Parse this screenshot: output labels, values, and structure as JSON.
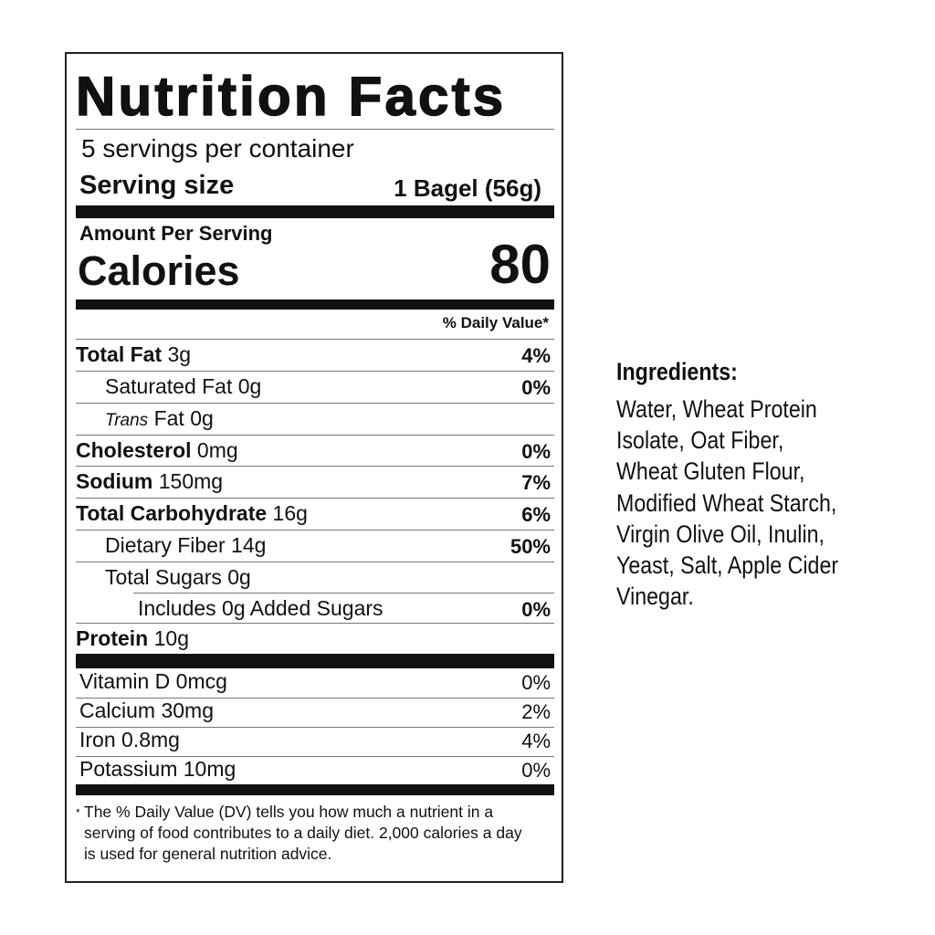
{
  "label": {
    "title": "Nutrition Facts",
    "servings_per_container": "5 servings per container",
    "serving_size_label": "Serving size",
    "serving_size_value": "1 Bagel (56g)",
    "amount_per_serving": "Amount Per Serving",
    "calories_label": "Calories",
    "calories_value": "80",
    "daily_value_header": "% Daily Value*",
    "nutrients": [
      {
        "name": "Total Fat",
        "amount": "3g",
        "dv": "4%",
        "bold": true,
        "indent": 0
      },
      {
        "name": "Saturated Fat",
        "amount": "0g",
        "dv": "0%",
        "bold": false,
        "indent": 1
      },
      {
        "name": "Trans",
        "name_suffix": "Fat",
        "amount": "0g",
        "dv": "",
        "bold": false,
        "indent": 1,
        "italic_prefix": true
      },
      {
        "name": "Cholesterol",
        "amount": "0mg",
        "dv": "0%",
        "bold": true,
        "indent": 0
      },
      {
        "name": "Sodium",
        "amount": "150mg",
        "dv": "7%",
        "bold": true,
        "indent": 0
      },
      {
        "name": "Total Carbohydrate",
        "amount": "16g",
        "dv": "6%",
        "bold": true,
        "indent": 0
      },
      {
        "name": "Dietary Fiber",
        "amount": "14g",
        "dv": "50%",
        "bold": false,
        "indent": 1
      },
      {
        "name": "Total Sugars",
        "amount": "0g",
        "dv": "",
        "bold": false,
        "indent": 1
      },
      {
        "name": "Includes 0g Added Sugars",
        "amount": "",
        "dv": "0%",
        "bold": false,
        "indent": 2
      },
      {
        "name": "Protein",
        "amount": "10g",
        "dv": "",
        "bold": true,
        "indent": 0
      }
    ],
    "vitamins": [
      {
        "name": "Vitamin D 0mcg",
        "dv": "0%"
      },
      {
        "name": "Calcium 30mg",
        "dv": "2%"
      },
      {
        "name": "Iron 0.8mg",
        "dv": "4%"
      },
      {
        "name": "Potassium 10mg",
        "dv": "0%"
      }
    ],
    "footnote_star": "*",
    "footnote_lines": [
      "The % Daily Value (DV) tells you how much a nutrient in a",
      "serving of food contributes to a daily diet. 2,000 calories a day",
      "is used for general nutrition advice."
    ]
  },
  "ingredients": {
    "heading": "Ingredients:",
    "lines": [
      "Water, Wheat Protein",
      "Isolate, Oat Fiber,",
      "Wheat Gluten Flour,",
      "Modified Wheat Starch,",
      "Virgin Olive Oil, Inulin,",
      "Yeast, Salt, Apple Cider",
      "Vinegar."
    ]
  }
}
